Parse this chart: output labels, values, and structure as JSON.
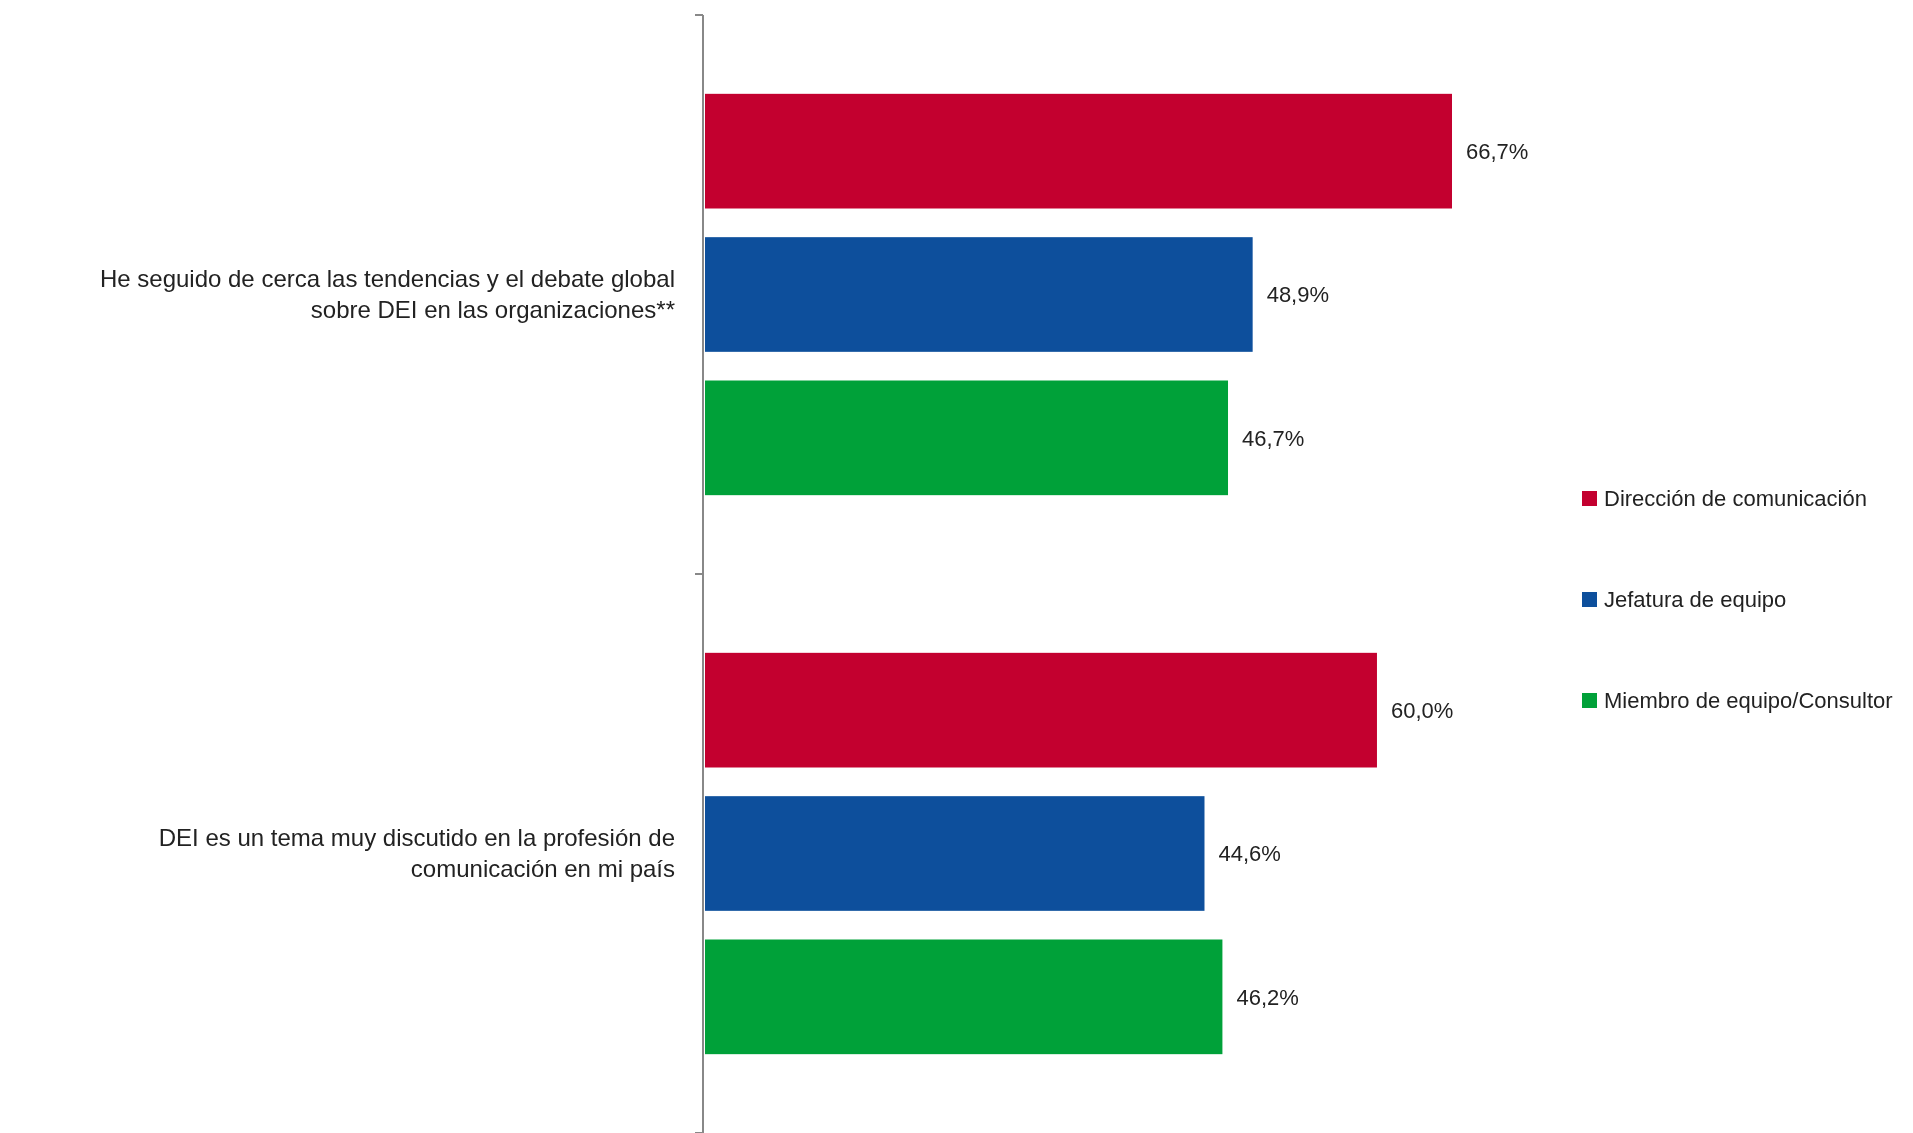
{
  "chart_data": {
    "type": "bar",
    "orientation": "horizontal",
    "categories": [
      "He seguido de cerca las tendencias y el debate global sobre DEI en las organizaciones**",
      "DEI es un tema muy discutido en la profesión de comunicación en mi país"
    ],
    "series": [
      {
        "name": "Dirección de comunicación",
        "color": "#c3002f",
        "values": [
          66.7,
          60.0
        ],
        "value_labels": [
          "66,7%",
          "60,0%"
        ]
      },
      {
        "name": "Jefatura de equipo",
        "color": "#0d4f9c",
        "values": [
          48.9,
          44.6
        ],
        "value_labels": [
          "48,9%",
          "44,6%"
        ]
      },
      {
        "name": "Miembro de equipo/Consultor",
        "color": "#00a139",
        "values": [
          46.7,
          46.2
        ],
        "value_labels": [
          "46,7%",
          "46,2%"
        ]
      }
    ],
    "tick_labels": "y",
    "legend": "right"
  }
}
